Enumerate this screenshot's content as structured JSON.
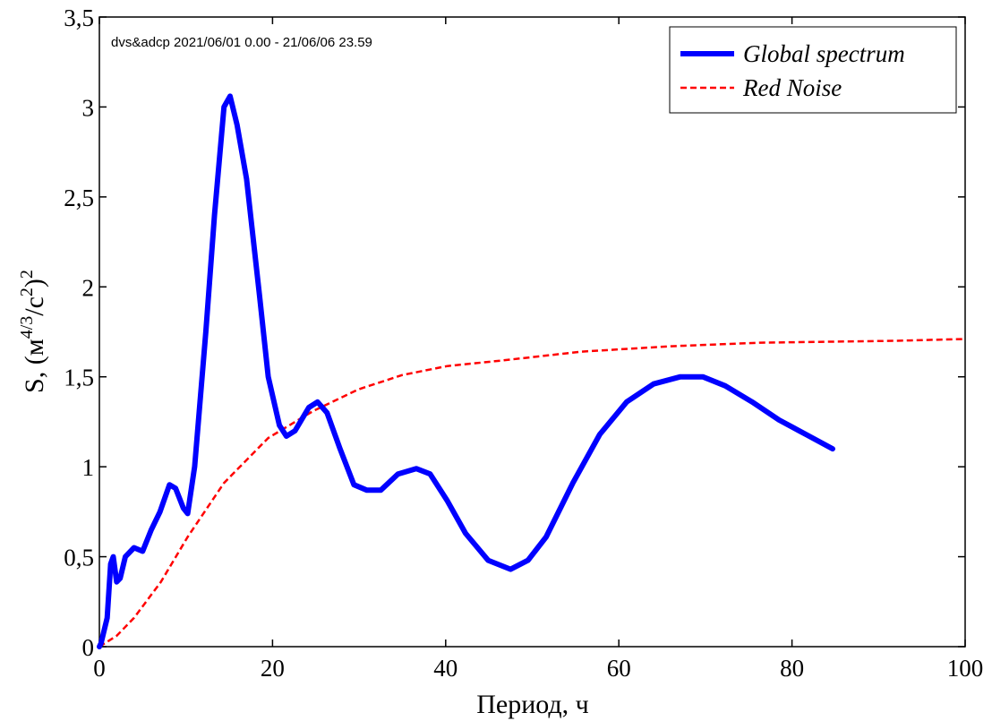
{
  "chart_data": {
    "type": "line",
    "annotation": "dvs&adcp 2021/06/01 0.00 - 21/06/06 23.59",
    "xlabel": "Период, ч",
    "ylabel": {
      "prefix": "S, (м",
      "sup1": "4/3",
      "mid": "/c",
      "sup2": "2",
      "suffix": ")",
      "sup3": "2"
    },
    "xlim": [
      0,
      100
    ],
    "ylim": [
      0,
      3.5
    ],
    "xticks": [
      "0",
      "20",
      "40",
      "60",
      "80",
      "100"
    ],
    "yticks": [
      "0",
      "0,5",
      "1",
      "1,5",
      "2",
      "2,5",
      "3",
      "3,5"
    ],
    "legend_position": "top-right",
    "series": [
      {
        "name": "Global spectrum",
        "color": "#0000ff",
        "style": "solid",
        "x": [
          0,
          0.2,
          0.5,
          0.9,
          1.3,
          1.6,
          2,
          2.4,
          3,
          4,
          5,
          6,
          7,
          8.1,
          8.8,
          9.7,
          10.2,
          11,
          12.3,
          13.3,
          14.4,
          15.1,
          15.9,
          17,
          18.5,
          19.5,
          20.8,
          21.6,
          22.6,
          24.2,
          25.2,
          26.3,
          27.8,
          29.4,
          30.9,
          32.5,
          34.5,
          36.6,
          38.2,
          40.2,
          42.3,
          44.9,
          47.5,
          49.5,
          51.6,
          54.7,
          57.8,
          60.9,
          64,
          67.1,
          69.7,
          72.3,
          75.4,
          78.5,
          81.6,
          84.7
        ],
        "y": [
          0,
          0.02,
          0.08,
          0.16,
          0.46,
          0.5,
          0.36,
          0.38,
          0.5,
          0.55,
          0.53,
          0.65,
          0.75,
          0.9,
          0.88,
          0.77,
          0.74,
          1.0,
          1.75,
          2.4,
          3.0,
          3.06,
          2.9,
          2.6,
          1.95,
          1.5,
          1.23,
          1.17,
          1.2,
          1.33,
          1.36,
          1.3,
          1.1,
          0.9,
          0.87,
          0.87,
          0.96,
          0.99,
          0.96,
          0.81,
          0.63,
          0.48,
          0.43,
          0.48,
          0.61,
          0.91,
          1.18,
          1.36,
          1.46,
          1.5,
          1.5,
          1.45,
          1.36,
          1.26,
          1.18,
          1.1
        ]
      },
      {
        "name": "Red Noise",
        "color": "#ff0000",
        "style": "dashed",
        "x": [
          0,
          2,
          4,
          7.1,
          10.2,
          14.4,
          19.5,
          24.7,
          29.9,
          35,
          40.2,
          46.4,
          55.7,
          66,
          76.4,
          92,
          100
        ],
        "y": [
          0,
          0.06,
          0.16,
          0.36,
          0.61,
          0.91,
          1.16,
          1.31,
          1.43,
          1.51,
          1.56,
          1.59,
          1.64,
          1.67,
          1.69,
          1.7,
          1.71
        ]
      }
    ]
  }
}
